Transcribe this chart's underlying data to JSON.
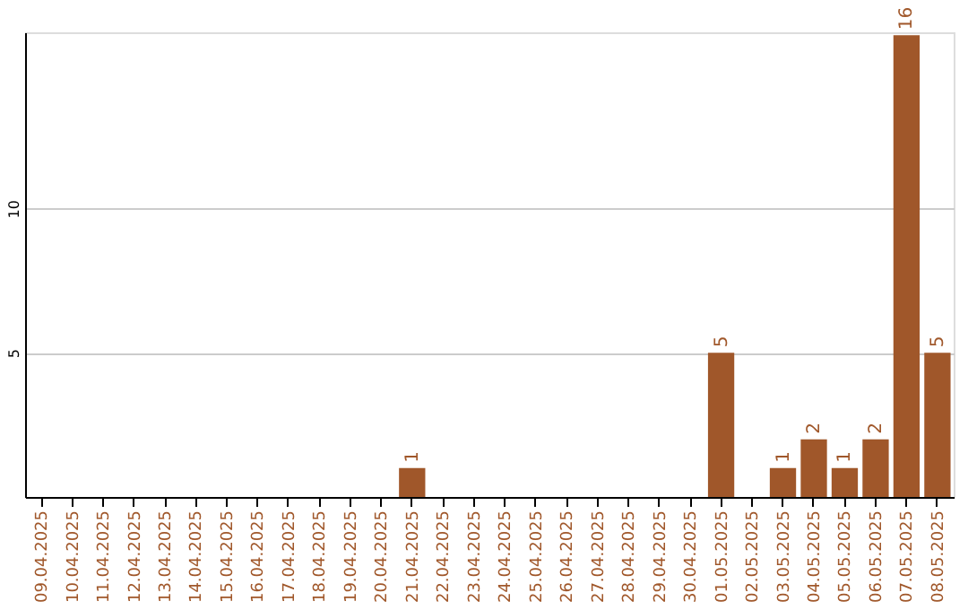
{
  "chart_data": {
    "type": "bar",
    "categories": [
      "09.04.2025",
      "10.04.2025",
      "11.04.2025",
      "12.04.2025",
      "13.04.2025",
      "14.04.2025",
      "15.04.2025",
      "16.04.2025",
      "17.04.2025",
      "18.04.2025",
      "19.04.2025",
      "20.04.2025",
      "21.04.2025",
      "22.04.2025",
      "23.04.2025",
      "24.04.2025",
      "25.04.2025",
      "26.04.2025",
      "27.04.2025",
      "28.04.2025",
      "29.04.2025",
      "30.04.2025",
      "01.05.2025",
      "02.05.2025",
      "03.05.2025",
      "04.05.2025",
      "05.05.2025",
      "06.05.2025",
      "07.05.2025",
      "08.05.2025"
    ],
    "values": [
      0,
      0,
      0,
      0,
      0,
      0,
      0,
      0,
      0,
      0,
      0,
      0,
      1,
      0,
      0,
      0,
      0,
      0,
      0,
      0,
      0,
      0,
      5,
      0,
      1,
      2,
      1,
      2,
      16,
      5
    ],
    "value_labels": [
      null,
      null,
      null,
      null,
      null,
      null,
      null,
      null,
      null,
      null,
      null,
      null,
      "1",
      null,
      null,
      null,
      null,
      null,
      null,
      null,
      null,
      null,
      "5",
      null,
      "1",
      "2",
      "1",
      "2",
      "16",
      "5"
    ],
    "color": "#a0572a",
    "ylim": [
      0,
      16.1
    ],
    "yticks": [
      5,
      10
    ],
    "grid": "y"
  }
}
